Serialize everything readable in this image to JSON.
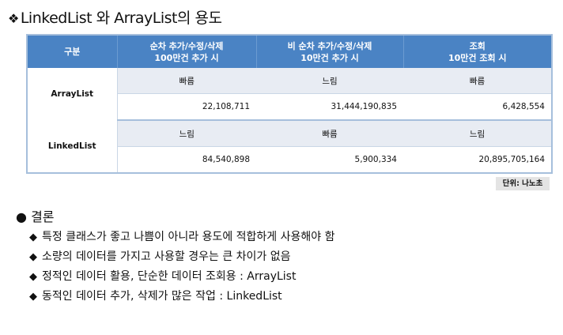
{
  "title": {
    "mark": "❖",
    "text": "LinkedList 와 ArrayList의 용도"
  },
  "table": {
    "headers": [
      {
        "lines": [
          "구분"
        ]
      },
      {
        "lines": [
          "순차 추가/수정/삭제",
          "100만건 추가 시"
        ]
      },
      {
        "lines": [
          "비 순차 추가/수정/삭제",
          "10만건 추가 시"
        ]
      },
      {
        "lines": [
          "조회",
          "10만건 조회 시"
        ]
      }
    ],
    "rows": [
      {
        "name": "ArrayList",
        "speed": [
          "빠름",
          "느림",
          "빠름"
        ],
        "values": [
          "22,108,711",
          "31,444,190,835",
          "6,428,554"
        ]
      },
      {
        "name": "LinkedList",
        "speed": [
          "느림",
          "빠름",
          "느림"
        ],
        "values": [
          "84,540,898",
          "5,900,334",
          "20,895,705,164"
        ]
      }
    ]
  },
  "unit": "단위: 나노초",
  "conclusion": {
    "bullet": "●",
    "title": "결론"
  },
  "points": [
    {
      "marker": "◆",
      "text": "특정 클래스가 좋고 나쁨이 아니라 용도에 적합하게 사용해야 함"
    },
    {
      "marker": "◆",
      "text": "소량의 데이터를 가지고 사용할 경우는 큰 차이가 없음"
    },
    {
      "marker": "◆",
      "text": "정적인 데이터 활용, 단순한 데이터 조회용 : ArrayList"
    },
    {
      "marker": "◆",
      "text": "동적인 데이터 추가, 삭제가 많은 작업 : LinkedList"
    }
  ]
}
